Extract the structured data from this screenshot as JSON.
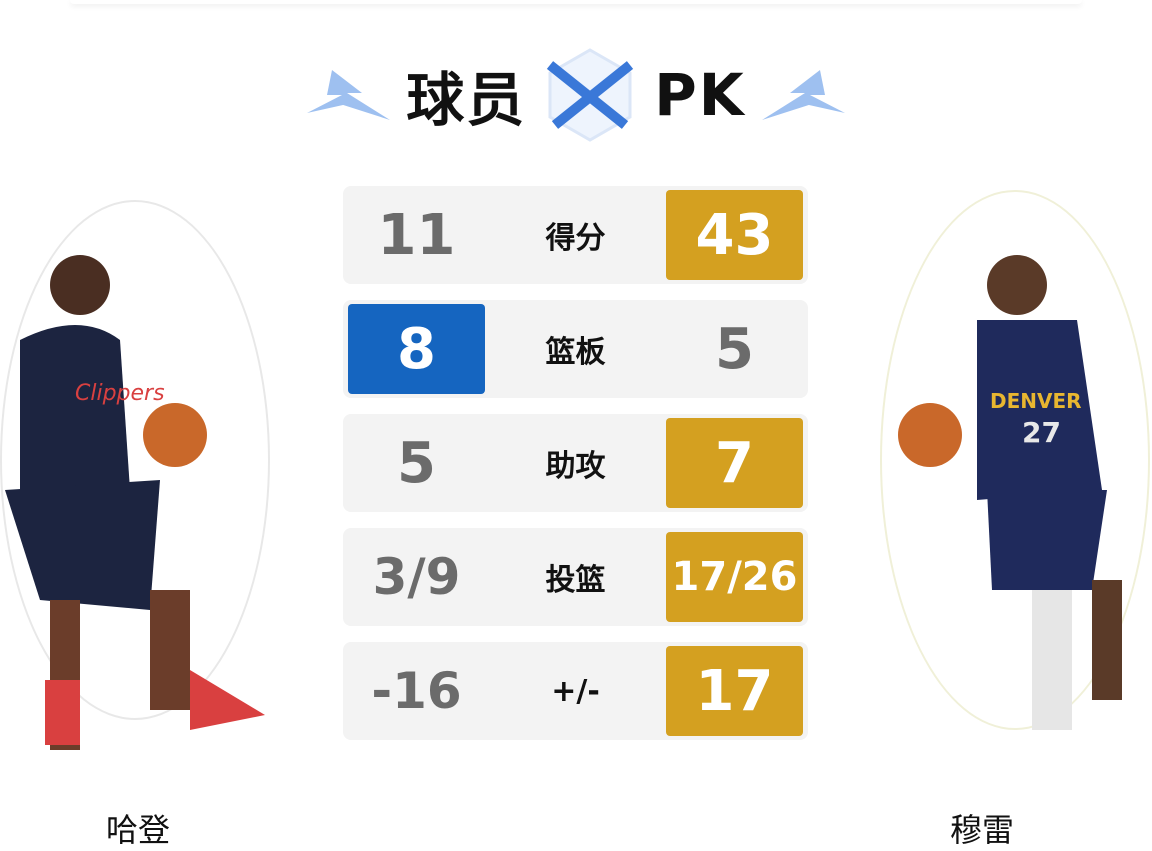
{
  "header": {
    "title_left": "球员",
    "title_right": "PK"
  },
  "colors": {
    "winner_left": "#1565C0",
    "winner_right": "#D4A020",
    "row_bg": "#F3F3F3"
  },
  "players": {
    "left": {
      "name": "哈登",
      "jersey": "Clippers"
    },
    "right": {
      "name": "穆雷",
      "jersey": "DENVER",
      "number": "27"
    }
  },
  "stats": [
    {
      "label": "得分",
      "left": "11",
      "right": "43",
      "winner": "right"
    },
    {
      "label": "篮板",
      "left": "8",
      "right": "5",
      "winner": "left"
    },
    {
      "label": "助攻",
      "left": "5",
      "right": "7",
      "winner": "right"
    },
    {
      "label": "投篮",
      "left": "3/9",
      "right": "17/26",
      "winner": "right"
    },
    {
      "label": "+/-",
      "left": "-16",
      "right": "17",
      "winner": "right"
    }
  ]
}
